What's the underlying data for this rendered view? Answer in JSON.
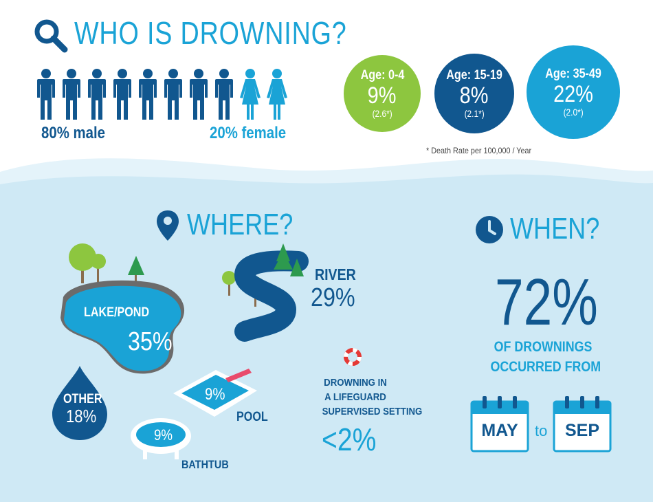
{
  "title": "WHO IS DROWNING?",
  "gender": {
    "male_label": "80% male",
    "female_label": "20% female",
    "male_count": 8,
    "female_count": 2
  },
  "age_groups": [
    {
      "label": "Age: 0-4",
      "percent": "9%",
      "rate": "(2.6*)",
      "color": "#8dc63f"
    },
    {
      "label": "Age: 15-19",
      "percent": "8%",
      "rate": "(2.1*)",
      "color": "#11578f"
    },
    {
      "label": "Age: 35-49",
      "percent": "22%",
      "rate": "(2.0*)",
      "color": "#1aa3d6"
    }
  ],
  "death_rate_note": "* Death Rate per 100,000 / Year",
  "where": {
    "heading": "WHERE?",
    "lake_label": "LAKE/POND",
    "lake_percent": "35%",
    "river_label": "RIVER",
    "river_percent": "29%",
    "other_label": "OTHER",
    "other_percent": "18%",
    "pool_label": "POOL",
    "pool_percent": "9%",
    "bathtub_label": "BATHTUB",
    "bathtub_percent": "9%",
    "lifeguard_line1": "DROWNING IN",
    "lifeguard_line2": "A LIFEGUARD",
    "lifeguard_line3": "SUPERVISED SETTING",
    "lifeguard_percent": "<2%"
  },
  "when": {
    "heading": "WHEN?",
    "percent": "72%",
    "line1": "OF DROWNINGS",
    "line2": "OCCURRED FROM",
    "from_month": "MAY",
    "to_word": "to",
    "to_month": "SEP"
  },
  "colors": {
    "dark_blue": "#11578f",
    "light_blue": "#1aa3d6",
    "green": "#8dc63f",
    "bg_blue": "#d6eef8"
  }
}
